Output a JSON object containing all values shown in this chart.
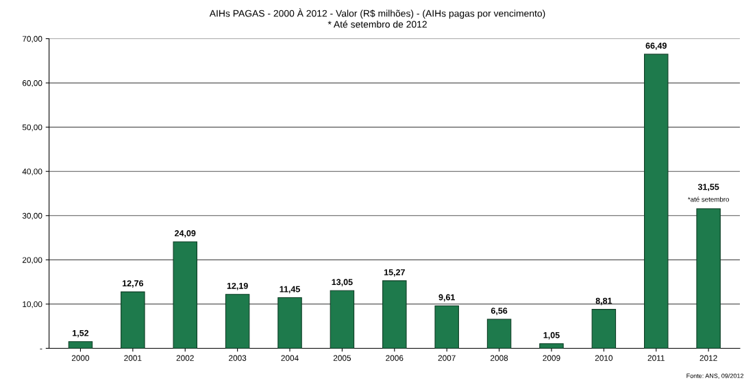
{
  "chart_data": {
    "type": "bar",
    "title": "AIHs PAGAS - 2000 À 2012 - Valor (R$ milhões) - (AIHs pagas por vencimento)",
    "subtitle": "* Até setembro de 2012",
    "categories": [
      "2000",
      "2001",
      "2002",
      "2003",
      "2004",
      "2005",
      "2006",
      "2007",
      "2008",
      "2009",
      "2010",
      "2011",
      "2012"
    ],
    "values": [
      1.52,
      12.76,
      24.09,
      12.19,
      11.45,
      13.05,
      15.27,
      9.61,
      6.56,
      1.05,
      8.81,
      66.49,
      31.55
    ],
    "value_labels": [
      "1,52",
      "12,76",
      "24,09",
      "12,19",
      "11,45",
      "13,05",
      "15,27",
      "9,61",
      "6,56",
      "1,05",
      "8,81",
      "66,49",
      "31,55"
    ],
    "color": "#1e7a4c",
    "ylim": [
      0,
      70
    ],
    "yticks": [
      {
        "value": 0,
        "label": "-"
      },
      {
        "value": 10,
        "label": "10,00"
      },
      {
        "value": 20,
        "label": "20,00"
      },
      {
        "value": 30,
        "label": "30,00"
      },
      {
        "value": 40,
        "label": "40,00"
      },
      {
        "value": 50,
        "label": "50,00"
      },
      {
        "value": 60,
        "label": "60,00"
      },
      {
        "value": 70,
        "label": "70,00"
      }
    ],
    "grid": "y",
    "annotations": [
      {
        "text": "*até setembro",
        "x": "2012",
        "y": 31.55
      },
      "Fonte: ANS, 09/2012"
    ]
  }
}
